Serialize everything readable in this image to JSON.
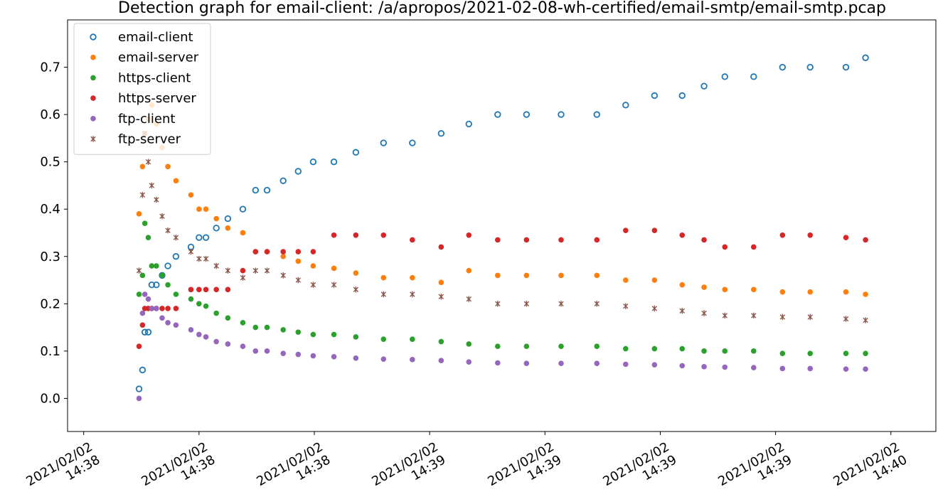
{
  "chart_data": {
    "type": "scatter",
    "title": "Detection graph for email-client: /a/apropos/2021-02-08-wh-certified/email-smtp/email-smtp.pcap",
    "x": [
      0.48,
      0.51,
      0.53,
      0.56,
      0.59,
      0.63,
      0.68,
      0.73,
      0.8,
      0.93,
      1.0,
      1.06,
      1.15,
      1.25,
      1.38,
      1.49,
      1.59,
      1.73,
      1.86,
      1.99,
      2.17,
      2.36,
      2.6,
      2.85,
      3.1,
      3.34,
      3.59,
      3.84,
      4.14,
      4.45,
      4.7,
      4.95,
      5.19,
      5.38,
      5.56,
      5.81,
      6.06,
      6.3,
      6.61,
      6.78
    ],
    "series": [
      {
        "name": "email-client",
        "color": "#1f77b4",
        "marker": "open-circle",
        "values": [
          0.02,
          0.06,
          0.14,
          0.14,
          0.24,
          0.24,
          0.26,
          0.28,
          0.3,
          0.32,
          0.34,
          0.34,
          0.36,
          0.38,
          0.4,
          0.44,
          0.44,
          0.46,
          0.48,
          0.5,
          0.5,
          0.52,
          0.54,
          0.54,
          0.56,
          0.58,
          0.6,
          0.6,
          0.6,
          0.6,
          0.62,
          0.64,
          0.64,
          0.66,
          0.68,
          0.68,
          0.7,
          0.7,
          0.7,
          0.72
        ]
      },
      {
        "name": "email-server",
        "color": "#ff7f0e",
        "marker": "circle",
        "values": [
          0.39,
          0.49,
          0.56,
          0.59,
          0.62,
          0.58,
          0.53,
          0.49,
          0.46,
          0.43,
          0.4,
          0.4,
          0.38,
          0.36,
          0.35,
          0.31,
          0.31,
          0.3,
          0.29,
          0.28,
          0.275,
          0.265,
          0.255,
          0.255,
          0.245,
          0.27,
          0.26,
          0.26,
          0.26,
          0.26,
          0.25,
          0.25,
          0.24,
          0.235,
          0.23,
          0.23,
          0.225,
          0.225,
          0.225,
          0.22
        ]
      },
      {
        "name": "https-client",
        "color": "#2ca02c",
        "marker": "circle",
        "values": [
          0.22,
          0.26,
          0.37,
          0.34,
          0.28,
          0.28,
          0.26,
          0.24,
          0.22,
          0.21,
          0.2,
          0.195,
          0.18,
          0.17,
          0.16,
          0.15,
          0.15,
          0.145,
          0.14,
          0.135,
          0.135,
          0.13,
          0.125,
          0.125,
          0.12,
          0.115,
          0.11,
          0.11,
          0.11,
          0.11,
          0.105,
          0.105,
          0.105,
          0.1,
          0.1,
          0.1,
          0.095,
          0.095,
          0.095,
          0.095
        ]
      },
      {
        "name": "https-server",
        "color": "#d62728",
        "marker": "circle",
        "values": [
          0.11,
          0.155,
          0.19,
          0.19,
          0.19,
          0.19,
          0.19,
          0.19,
          0.19,
          0.23,
          0.23,
          0.23,
          0.23,
          0.23,
          0.27,
          0.31,
          0.31,
          0.31,
          0.31,
          0.31,
          0.345,
          0.345,
          0.345,
          0.335,
          0.32,
          0.345,
          0.335,
          0.335,
          0.335,
          0.335,
          0.355,
          0.355,
          0.345,
          0.335,
          0.32,
          0.32,
          0.345,
          0.345,
          0.34,
          0.335
        ]
      },
      {
        "name": "ftp-client",
        "color": "#9467bd",
        "marker": "circle",
        "values": [
          0.0,
          0.18,
          0.22,
          0.21,
          0.19,
          0.19,
          0.17,
          0.16,
          0.155,
          0.145,
          0.135,
          0.13,
          0.12,
          0.115,
          0.11,
          0.1,
          0.1,
          0.095,
          0.093,
          0.09,
          0.088,
          0.085,
          0.083,
          0.082,
          0.08,
          0.077,
          0.075,
          0.074,
          0.074,
          0.074,
          0.072,
          0.071,
          0.069,
          0.067,
          0.066,
          0.065,
          0.063,
          0.063,
          0.062,
          0.062
        ]
      },
      {
        "name": "ftp-server",
        "color": "#8c564b",
        "marker": "x",
        "values": [
          0.27,
          0.43,
          0.56,
          0.5,
          0.45,
          0.42,
          0.385,
          0.355,
          0.34,
          0.31,
          0.295,
          0.295,
          0.28,
          0.27,
          0.255,
          0.27,
          0.27,
          0.26,
          0.25,
          0.24,
          0.24,
          0.23,
          0.22,
          0.22,
          0.215,
          0.21,
          0.2,
          0.2,
          0.2,
          0.2,
          0.195,
          0.19,
          0.185,
          0.18,
          0.175,
          0.175,
          0.172,
          0.172,
          0.168,
          0.165
        ]
      }
    ],
    "xlim": [
      -0.14,
      7.39
    ],
    "xticks": [
      {
        "value": 0,
        "label": "2021/02/02\n14:38"
      },
      {
        "value": 1,
        "label": "2021/02/02\n14:38"
      },
      {
        "value": 2,
        "label": "2021/02/02\n14:38"
      },
      {
        "value": 3,
        "label": "2021/02/02\n14:39"
      },
      {
        "value": 4,
        "label": "2021/02/02\n14:39"
      },
      {
        "value": 5,
        "label": "2021/02/02\n14:39"
      },
      {
        "value": 6,
        "label": "2021/02/02\n14:39"
      },
      {
        "value": 7,
        "label": "2021/02/02\n14:40"
      }
    ],
    "ylim": [
      -0.07,
      0.8
    ],
    "yticks": [
      {
        "value": 0,
        "label": "0.0"
      },
      0.1,
      0.2,
      0.3,
      0.4,
      0.5,
      0.6,
      0.7
    ],
    "legend": "upper-left"
  }
}
